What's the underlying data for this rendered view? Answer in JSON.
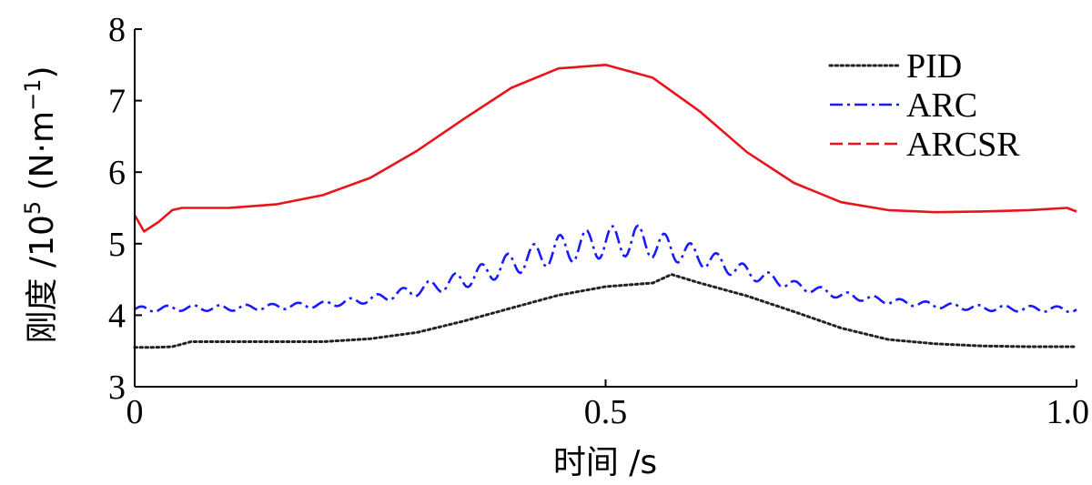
{
  "chart_data": {
    "type": "line",
    "xlabel": "时间 /s",
    "ylabel_prefix": "刚度 /10",
    "ylabel_exp": "5",
    "ylabel_unit_open": " (N·m",
    "ylabel_unit_exp": "−1",
    "ylabel_unit_close": ")",
    "xlim": [
      0,
      1
    ],
    "ylim": [
      3,
      8
    ],
    "xticks": [
      0,
      0.5,
      1.0
    ],
    "xtick_labels": [
      "0",
      "0.5",
      "1.0"
    ],
    "yticks": [
      3,
      4,
      5,
      6,
      7,
      8
    ],
    "ytick_labels": [
      "3",
      "4",
      "5",
      "6",
      "7",
      "8"
    ],
    "grid": false,
    "legend_position": "top-right",
    "series": [
      {
        "name": "PID",
        "color": "#222222",
        "style": "dotted",
        "x": [
          0,
          0.02,
          0.04,
          0.06,
          0.1,
          0.2,
          0.25,
          0.3,
          0.35,
          0.4,
          0.45,
          0.5,
          0.52,
          0.55,
          0.57,
          0.6,
          0.65,
          0.7,
          0.75,
          0.8,
          0.85,
          0.9,
          0.95,
          1.0
        ],
        "y": [
          3.55,
          3.55,
          3.56,
          3.63,
          3.63,
          3.63,
          3.67,
          3.76,
          3.92,
          4.1,
          4.28,
          4.4,
          4.42,
          4.45,
          4.57,
          4.45,
          4.27,
          4.05,
          3.82,
          3.66,
          3.6,
          3.57,
          3.56,
          3.56
        ]
      },
      {
        "name": "ARC",
        "color": "#1a1aff",
        "style": "dashdot",
        "x": [
          0,
          0.05,
          0.1,
          0.15,
          0.2,
          0.25,
          0.3,
          0.35,
          0.4,
          0.45,
          0.5,
          0.53,
          0.55,
          0.6,
          0.65,
          0.7,
          0.75,
          0.8,
          0.85,
          0.9,
          0.95,
          1.0
        ],
        "y": [
          4.08,
          4.1,
          4.1,
          4.12,
          4.15,
          4.22,
          4.35,
          4.5,
          4.72,
          4.92,
          5.02,
          5.05,
          5.0,
          4.82,
          4.6,
          4.42,
          4.28,
          4.2,
          4.14,
          4.1,
          4.09,
          4.08
        ],
        "amplitude": [
          0.04,
          0.04,
          0.04,
          0.04,
          0.04,
          0.05,
          0.08,
          0.12,
          0.16,
          0.2,
          0.22,
          0.22,
          0.2,
          0.14,
          0.1,
          0.06,
          0.05,
          0.04,
          0.04,
          0.04,
          0.04,
          0.04
        ]
      },
      {
        "name": "ARCSR",
        "color": "#e8141b",
        "style": "dashed",
        "x": [
          0,
          0.01,
          0.025,
          0.04,
          0.05,
          0.1,
          0.15,
          0.2,
          0.25,
          0.3,
          0.35,
          0.4,
          0.45,
          0.5,
          0.55,
          0.6,
          0.65,
          0.7,
          0.75,
          0.8,
          0.85,
          0.9,
          0.95,
          0.99,
          1.0
        ],
        "y": [
          5.4,
          5.17,
          5.3,
          5.47,
          5.5,
          5.5,
          5.55,
          5.68,
          5.92,
          6.3,
          6.75,
          7.18,
          7.45,
          7.5,
          7.32,
          6.85,
          6.28,
          5.85,
          5.58,
          5.47,
          5.44,
          5.45,
          5.47,
          5.5,
          5.45
        ]
      }
    ]
  }
}
